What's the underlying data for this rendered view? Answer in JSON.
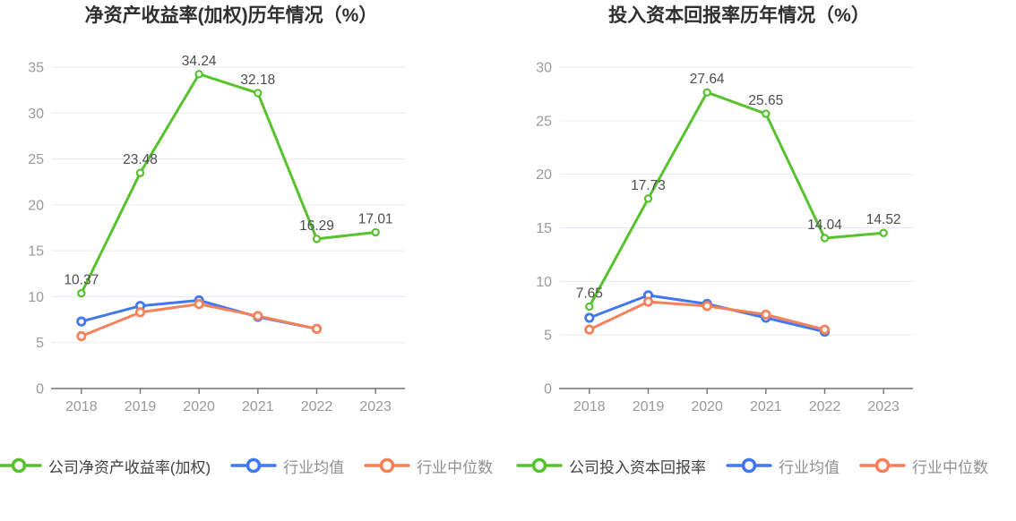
{
  "chart_data": [
    {
      "type": "line",
      "title": "净资产收益率(加权)历年情况（%）",
      "x": [
        "2018",
        "2019",
        "2020",
        "2021",
        "2022",
        "2023"
      ],
      "series": [
        {
          "name": "公司净资产收益率(加权)",
          "color": "#57c22d",
          "show_labels": true,
          "values": [
            10.37,
            23.48,
            34.24,
            32.18,
            16.29,
            17.01
          ]
        },
        {
          "name": "行业均值",
          "color": "#4277f2",
          "show_labels": false,
          "values": [
            7.3,
            9.0,
            9.6,
            7.8,
            6.5,
            null
          ]
        },
        {
          "name": "行业中位数",
          "color": "#f5815a",
          "show_labels": false,
          "values": [
            5.7,
            8.3,
            9.2,
            7.9,
            6.5,
            null
          ]
        }
      ],
      "ylim": [
        0,
        35
      ],
      "ytick_step": 5,
      "grid": true,
      "legend_position": "bottom"
    },
    {
      "type": "line",
      "title": "投入资本回报率历年情况（%）",
      "x": [
        "2018",
        "2019",
        "2020",
        "2021",
        "2022",
        "2023"
      ],
      "series": [
        {
          "name": "公司投入资本回报率",
          "color": "#57c22d",
          "show_labels": true,
          "values": [
            7.65,
            17.73,
            27.64,
            25.65,
            14.04,
            14.52
          ]
        },
        {
          "name": "行业均值",
          "color": "#4277f2",
          "show_labels": false,
          "values": [
            6.6,
            8.7,
            7.9,
            6.6,
            5.3,
            null
          ]
        },
        {
          "name": "行业中位数",
          "color": "#f5815a",
          "show_labels": false,
          "values": [
            5.5,
            8.1,
            7.7,
            6.9,
            5.5,
            null
          ]
        }
      ],
      "ylim": [
        0,
        30
      ],
      "ytick_step": 5,
      "grid": true,
      "legend_position": "bottom"
    }
  ],
  "style": {
    "title_color": "#2f2f2f",
    "axis_line_color": "#6e7379",
    "grid_color": "#e4eaf5",
    "tick_label_color": "#999999",
    "data_label_color": "#4d4d4d",
    "legend_primary_text": "#404040",
    "legend_secondary_text": "#8f8f8f",
    "divider_color": "#ececec",
    "marker_fill": "#ffffff"
  }
}
